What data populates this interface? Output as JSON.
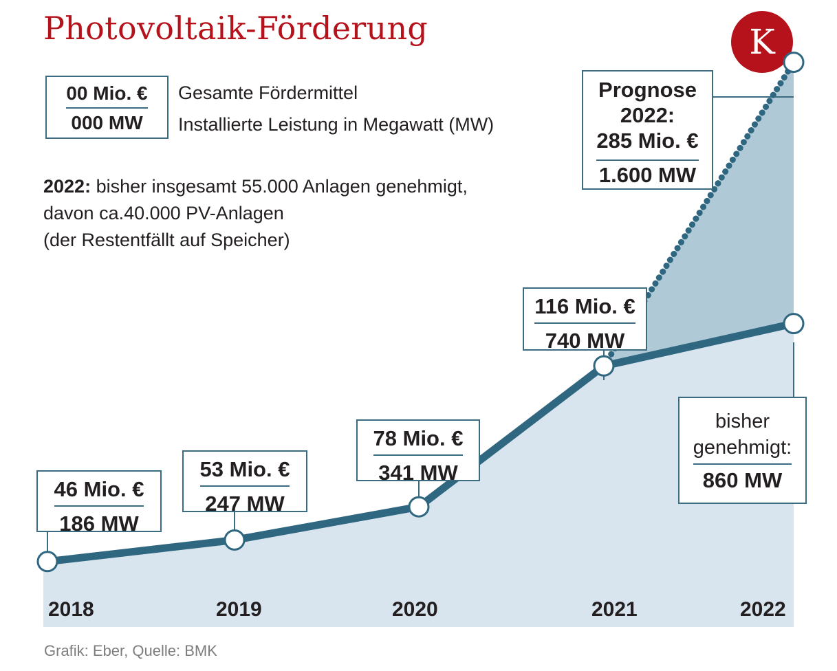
{
  "title": "Photovoltaik-Förderung",
  "logo_letter": "K",
  "legend": {
    "money_sample": "00 Mio. €",
    "mw_sample": "000 MW",
    "money_label": "Gesamte Fördermittel",
    "mw_label": "Installierte Leistung in Megawatt (MW)"
  },
  "note": {
    "bold": "2022:",
    "line1": " bisher insgesamt 55.000 Anlagen genehmigt,",
    "line2": "davon ca.40.000 PV-Anlagen",
    "line3": "(der Restentfällt auf Speicher)"
  },
  "source": "Grafik: Eber, Quelle: BMK",
  "colors": {
    "accent_red": "#b5121b",
    "line": "#2f6680",
    "area_light": "#d8e5ee",
    "area_forecast": "#afcad6"
  },
  "chart_data": {
    "type": "line",
    "x": [
      "2018",
      "2019",
      "2020",
      "2021",
      "2022"
    ],
    "series": [
      {
        "name": "bisher genehmigt",
        "mw": [
          186,
          247,
          341,
          740,
          860
        ],
        "funding_mio_eur": [
          46,
          53,
          78,
          116,
          null
        ]
      },
      {
        "name": "Prognose",
        "mw": [
          null,
          null,
          null,
          740,
          1600
        ],
        "funding_mio_eur": [
          null,
          null,
          null,
          116,
          285
        ],
        "style": "dotted"
      }
    ],
    "labels": [
      {
        "year": "2018",
        "money": "46 Mio. €",
        "mw": "186 MW"
      },
      {
        "year": "2019",
        "money": "53 Mio. €",
        "mw": "247 MW"
      },
      {
        "year": "2020",
        "money": "78 Mio. €",
        "mw": "341 MW"
      },
      {
        "year": "2021",
        "money": "116 Mio. €",
        "mw": "740 MW"
      }
    ],
    "forecast_label": {
      "line1": "Prognose",
      "line2": "2022:",
      "money": "285 Mio. €",
      "mw": "1.600 MW"
    },
    "current_label": {
      "line1": "bisher",
      "line2": "genehmigt:",
      "mw": "860 MW"
    },
    "year_labels": [
      "2018",
      "2019",
      "2020",
      "2021",
      "2022"
    ]
  }
}
